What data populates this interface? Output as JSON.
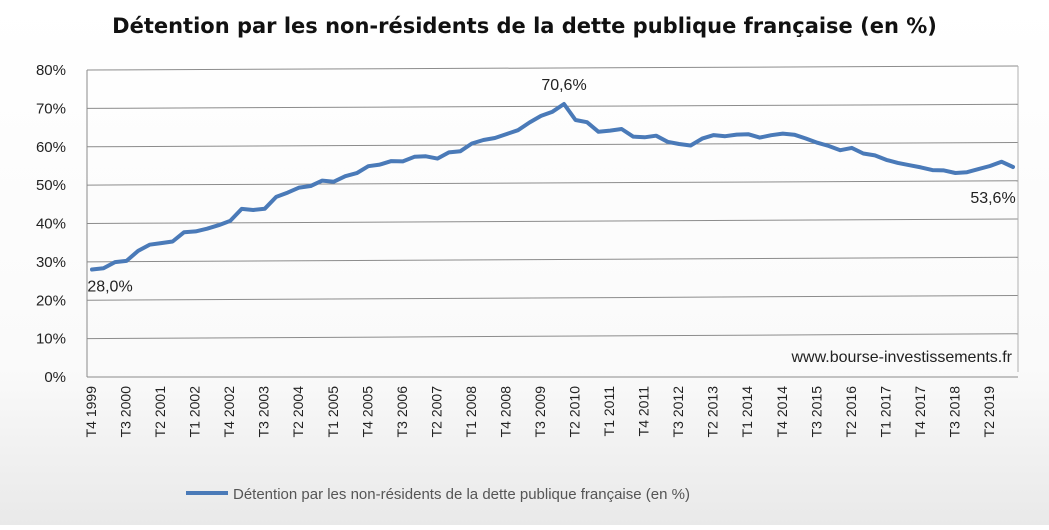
{
  "chart_data": {
    "type": "line",
    "title": "Détention par les non-résidents de la dette publique française (en %)",
    "xlabel": "",
    "ylabel": "",
    "ylim": [
      0,
      80
    ],
    "y_tick_labels": [
      "0%",
      "10%",
      "20%",
      "30%",
      "40%",
      "50%",
      "60%",
      "70%",
      "80%"
    ],
    "x_tick_labels": [
      "T4 1999",
      "T3 2000",
      "T2 2001",
      "T1 2002",
      "T4 2002",
      "T3 2003",
      "T2 2004",
      "T1 2005",
      "T4 2005",
      "T3 2006",
      "T2 2007",
      "T1 2008",
      "T4 2008",
      "T3 2009",
      "T2 2010",
      "T1 2011",
      "T4 2011",
      "T3 2012",
      "T2 2013",
      "T1 2014",
      "T4 2014",
      "T3 2015",
      "T2 2016",
      "T1 2017",
      "T4 2017",
      "T3 2018",
      "T2 2019"
    ],
    "grid": true,
    "legend_position": "bottom",
    "series": [
      {
        "name": "Détention par les non-résidents de la dette publique française (en %)",
        "color": "#4a7ab8",
        "values": [
          28.0,
          28.3,
          29.9,
          30.2,
          32.8,
          34.4,
          34.8,
          35.2,
          37.6,
          37.8,
          38.5,
          39.4,
          40.5,
          43.6,
          43.3,
          43.6,
          46.7,
          47.8,
          49.1,
          49.5,
          50.9,
          50.6,
          52.0,
          52.8,
          54.6,
          55.0,
          55.9,
          55.8,
          57.0,
          57.1,
          56.5,
          58.1,
          58.4,
          60.4,
          61.3,
          61.8,
          62.8,
          63.8,
          65.8,
          67.5,
          68.6,
          70.6,
          66.4,
          65.8,
          63.3,
          63.6,
          64.0,
          62.0,
          61.8,
          62.2,
          60.6,
          60.0,
          59.6,
          61.4,
          62.3,
          62.0,
          62.4,
          62.5,
          61.6,
          62.2,
          62.6,
          62.3,
          61.3,
          60.2,
          59.3,
          58.2,
          58.8,
          57.3,
          56.8,
          55.6,
          54.8,
          54.2,
          53.6,
          52.9,
          52.8,
          52.1,
          52.3,
          53.1,
          53.9,
          55.0,
          53.6
        ]
      }
    ],
    "annotations": [
      {
        "text": "28,0%",
        "point_index": 0
      },
      {
        "text": "70,6%",
        "point_index": 41
      },
      {
        "text": "53,6%",
        "point_index": 80
      }
    ],
    "watermark": "www.bourse-investissements.fr",
    "legend_label": "Détention par les non-résidents de la dette publique française (en %)"
  }
}
